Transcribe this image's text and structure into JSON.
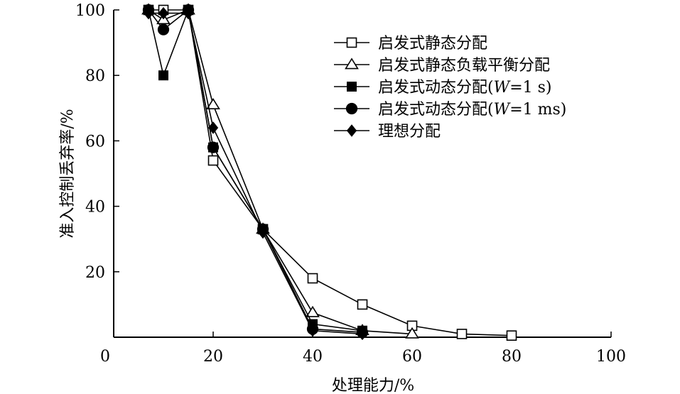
{
  "chart_data": {
    "type": "line",
    "title": "",
    "xlabel": "处理能力/%",
    "ylabel": "准入控制丢弃率/%",
    "xlim": [
      0,
      100
    ],
    "ylim": [
      0,
      100
    ],
    "xticks": [
      0,
      20,
      40,
      60,
      80,
      100
    ],
    "yticks": [
      20,
      40,
      60,
      80,
      100
    ],
    "grid": false,
    "legend_position": "top-right",
    "series": [
      {
        "name": "启发式静态分配",
        "marker": "square-open",
        "x": [
          7,
          10,
          15,
          20,
          30,
          40,
          50,
          60,
          70,
          80
        ],
        "y": [
          100,
          100,
          100,
          54,
          33,
          18,
          10,
          3.5,
          1,
          0.5
        ]
      },
      {
        "name": "启发式静态负载平衡分配",
        "marker": "triangle-open",
        "x": [
          7,
          10,
          15,
          20,
          30,
          40,
          50,
          60
        ],
        "y": [
          100,
          97,
          100,
          71,
          33,
          7.5,
          2,
          1
        ]
      },
      {
        "name": "启发式动态分配(W=1 s)",
        "name_parts": [
          "启发式动态分配(",
          "W",
          "=1 s)"
        ],
        "marker": "square-filled",
        "x": [
          7,
          10,
          15,
          20,
          30,
          40,
          50
        ],
        "y": [
          100,
          80,
          100,
          58,
          33,
          4,
          2
        ]
      },
      {
        "name": "启发式动态分配(W=1 ms)",
        "name_parts": [
          "启发式动态分配(",
          "W",
          "=1 ms)"
        ],
        "marker": "circle-filled",
        "x": [
          7,
          10,
          15,
          20,
          30,
          40,
          50
        ],
        "y": [
          100,
          94,
          100,
          58,
          33,
          2.5,
          1.5
        ]
      },
      {
        "name": "理想分配",
        "marker": "diamond-filled",
        "x": [
          7,
          10,
          15,
          20,
          30,
          40,
          50
        ],
        "y": [
          99,
          99,
          99,
          64,
          32,
          2,
          1
        ]
      }
    ]
  }
}
